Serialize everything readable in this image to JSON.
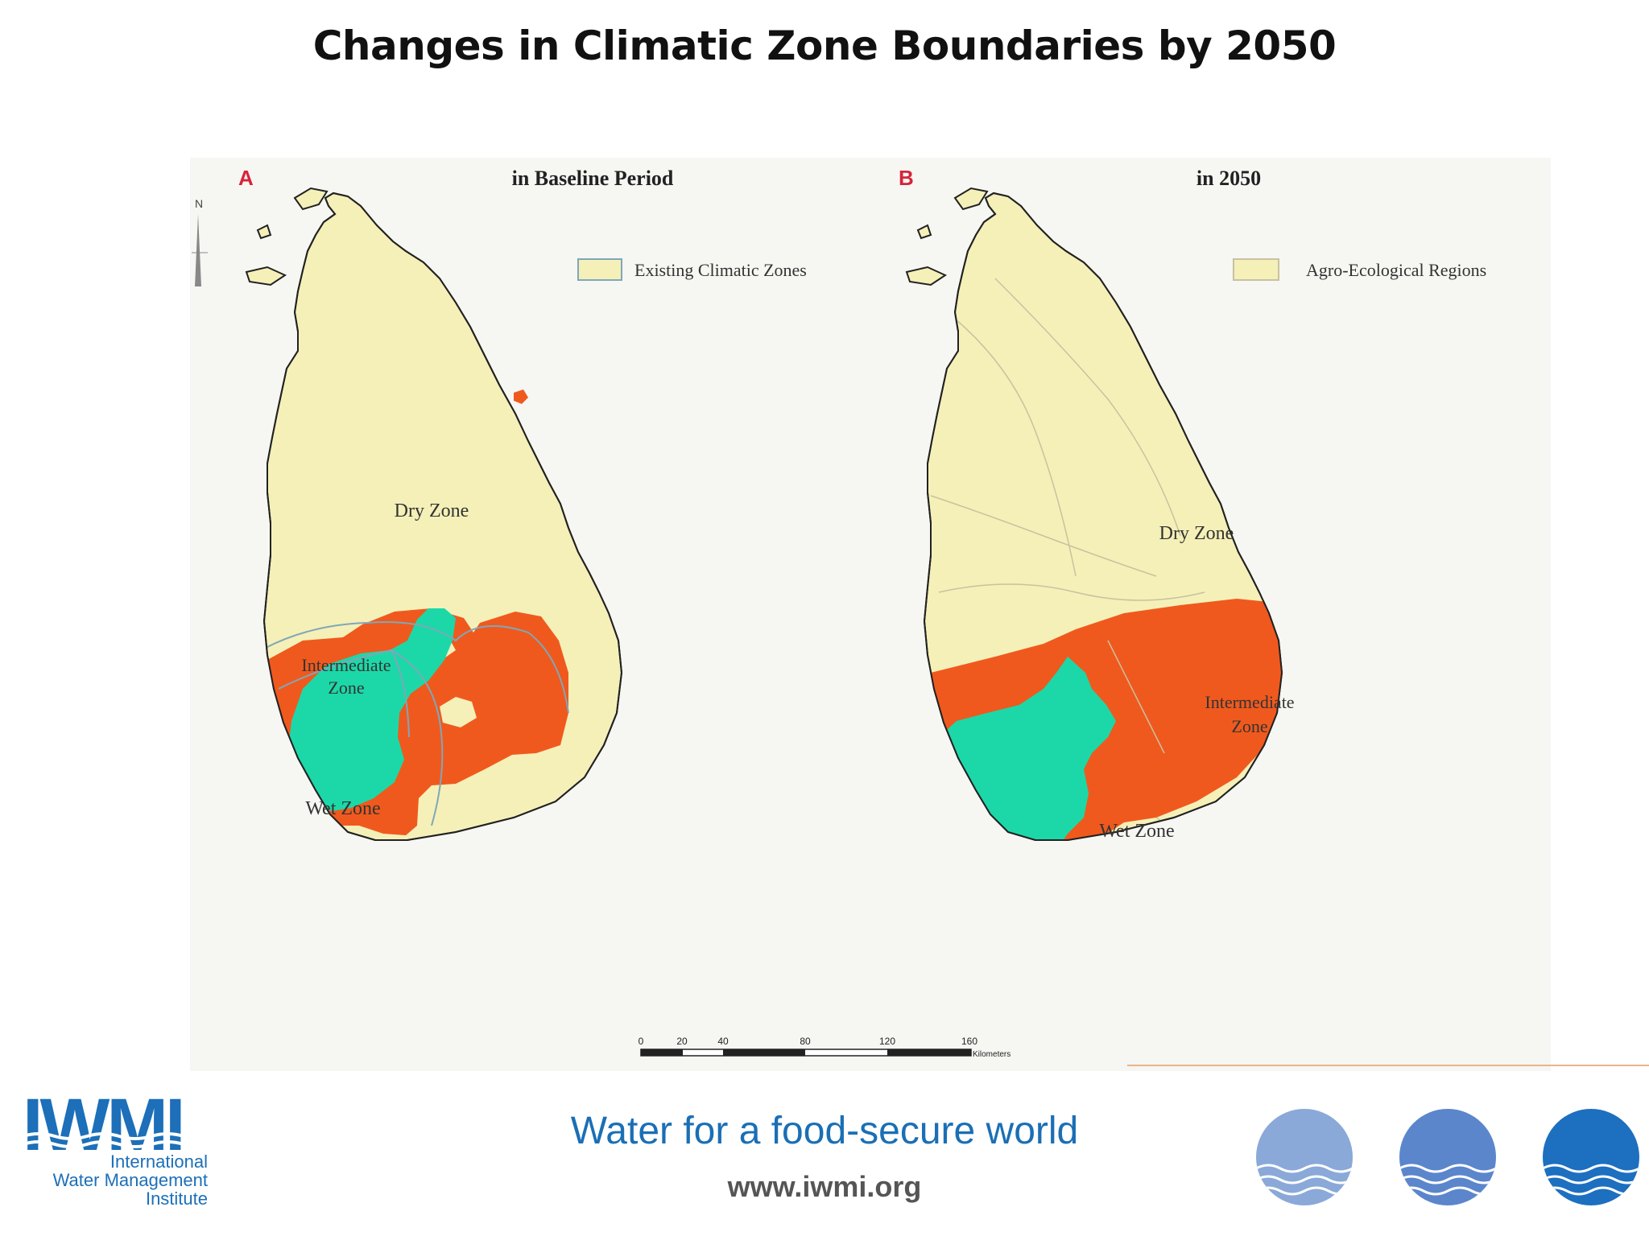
{
  "title": "Changes in Climatic Zone Boundaries by 2050",
  "map_a": {
    "letter": "A",
    "caption": "in Baseline Period",
    "legend": "Existing Climatic Zones",
    "labels": {
      "dry": "Dry Zone",
      "intermediate_line1": "Intermediate",
      "intermediate_line2": "Zone",
      "wet": "Wet Zone"
    }
  },
  "map_b": {
    "letter": "B",
    "caption": "in 2050",
    "legend": "Agro-Ecological Regions",
    "labels": {
      "dry": "Dry Zone",
      "intermediate_line1": "Intermediate",
      "intermediate_line2": "Zone",
      "wet": "Wet Zone"
    }
  },
  "north_arrow": "N",
  "scale_bar": {
    "ticks": [
      "0",
      "20",
      "40",
      "80",
      "120",
      "160"
    ],
    "unit": "Kilometers"
  },
  "colors": {
    "dry": "#f5f0b8",
    "intermediate": "#f0591e",
    "wet": "#1cd8a8",
    "outline": "#222222",
    "letter": "#d6243a"
  },
  "footer": {
    "logo_word": "IWMI",
    "logo_line1": "International",
    "logo_line2": "Water Management",
    "logo_line3": "Institute",
    "tagline": "Water for a food-secure world",
    "website": "www.iwmi.org",
    "decor_icons": [
      "water-drop-light-icon",
      "water-drop-medium-icon",
      "water-drop-dark-icon"
    ]
  }
}
